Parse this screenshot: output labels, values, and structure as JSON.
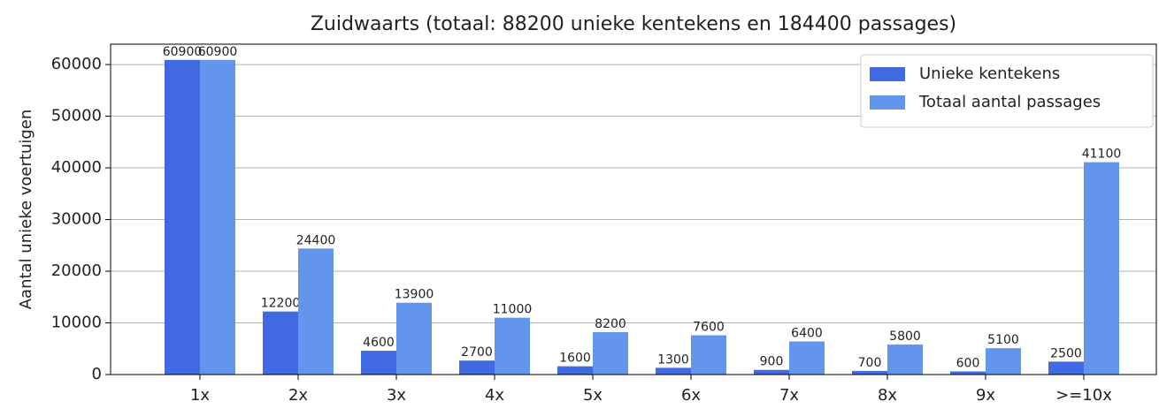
{
  "chart_data": {
    "type": "bar",
    "title": "Zuidwaarts (totaal: 88200 unieke kentekens en 184400 passages)",
    "y_label": "Aantal unieke voertuigen",
    "categories": [
      "1x",
      "2x",
      "3x",
      "4x",
      "5x",
      "6x",
      "7x",
      "8x",
      "9x",
      ">=10x"
    ],
    "series": [
      {
        "name": "Unieke kentekens",
        "color": "#4169e1",
        "values": [
          60900,
          12200,
          4600,
          2700,
          1600,
          1300,
          900,
          700,
          600,
          2500
        ]
      },
      {
        "name": "Totaal aantal passages",
        "color": "#6495ed",
        "values": [
          60900,
          24400,
          13900,
          11000,
          8200,
          7600,
          6400,
          5800,
          5100,
          41100
        ]
      }
    ],
    "ylim": [
      0,
      63945
    ],
    "yticks": [
      0,
      10000,
      20000,
      30000,
      40000,
      50000,
      60000
    ],
    "grid": true,
    "legend": "upper right"
  }
}
